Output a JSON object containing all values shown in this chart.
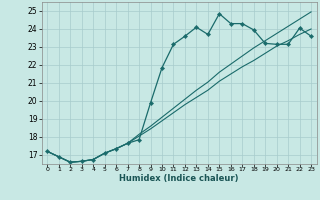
{
  "xlabel": "Humidex (Indice chaleur)",
  "bg_color": "#c8e8e4",
  "grid_color": "#a8cccc",
  "line_color": "#1a6b6b",
  "xlim": [
    -0.5,
    23.5
  ],
  "ylim": [
    16.5,
    25.5
  ],
  "yticks": [
    17,
    18,
    19,
    20,
    21,
    22,
    23,
    24,
    25
  ],
  "xticks": [
    0,
    1,
    2,
    3,
    4,
    5,
    6,
    7,
    8,
    9,
    10,
    11,
    12,
    13,
    14,
    15,
    16,
    17,
    18,
    19,
    20,
    21,
    22,
    23
  ],
  "line1_x": [
    0,
    1,
    2,
    3,
    4,
    5,
    6,
    7,
    8,
    9,
    10,
    11,
    12,
    13,
    14,
    15,
    16,
    17,
    18,
    19,
    20,
    21,
    22,
    23
  ],
  "line1_y": [
    17.2,
    16.9,
    16.6,
    16.65,
    16.75,
    17.1,
    17.35,
    17.65,
    17.85,
    19.9,
    21.85,
    23.15,
    23.6,
    24.1,
    23.7,
    24.85,
    24.3,
    24.3,
    23.95,
    23.2,
    23.15,
    23.15,
    24.05,
    23.6
  ],
  "line2_x": [
    0,
    1,
    2,
    3,
    4,
    5,
    6,
    7,
    8,
    9,
    10,
    11,
    12,
    13,
    14,
    15,
    16,
    17,
    18,
    19,
    20,
    21,
    22,
    23
  ],
  "line2_y": [
    17.2,
    16.9,
    16.6,
    16.65,
    16.75,
    17.1,
    17.35,
    17.65,
    18.05,
    18.45,
    18.9,
    19.35,
    19.8,
    20.2,
    20.6,
    21.1,
    21.5,
    21.9,
    22.25,
    22.65,
    23.05,
    23.35,
    23.7,
    24.0
  ],
  "line3_x": [
    0,
    1,
    2,
    3,
    4,
    5,
    6,
    7,
    8,
    9,
    10,
    11,
    12,
    13,
    14,
    15,
    16,
    17,
    18,
    19,
    20,
    21,
    22,
    23
  ],
  "line3_y": [
    17.2,
    16.9,
    16.6,
    16.65,
    16.75,
    17.1,
    17.35,
    17.65,
    18.15,
    18.6,
    19.1,
    19.6,
    20.1,
    20.6,
    21.05,
    21.6,
    22.05,
    22.5,
    22.95,
    23.35,
    23.75,
    24.15,
    24.55,
    24.95
  ]
}
